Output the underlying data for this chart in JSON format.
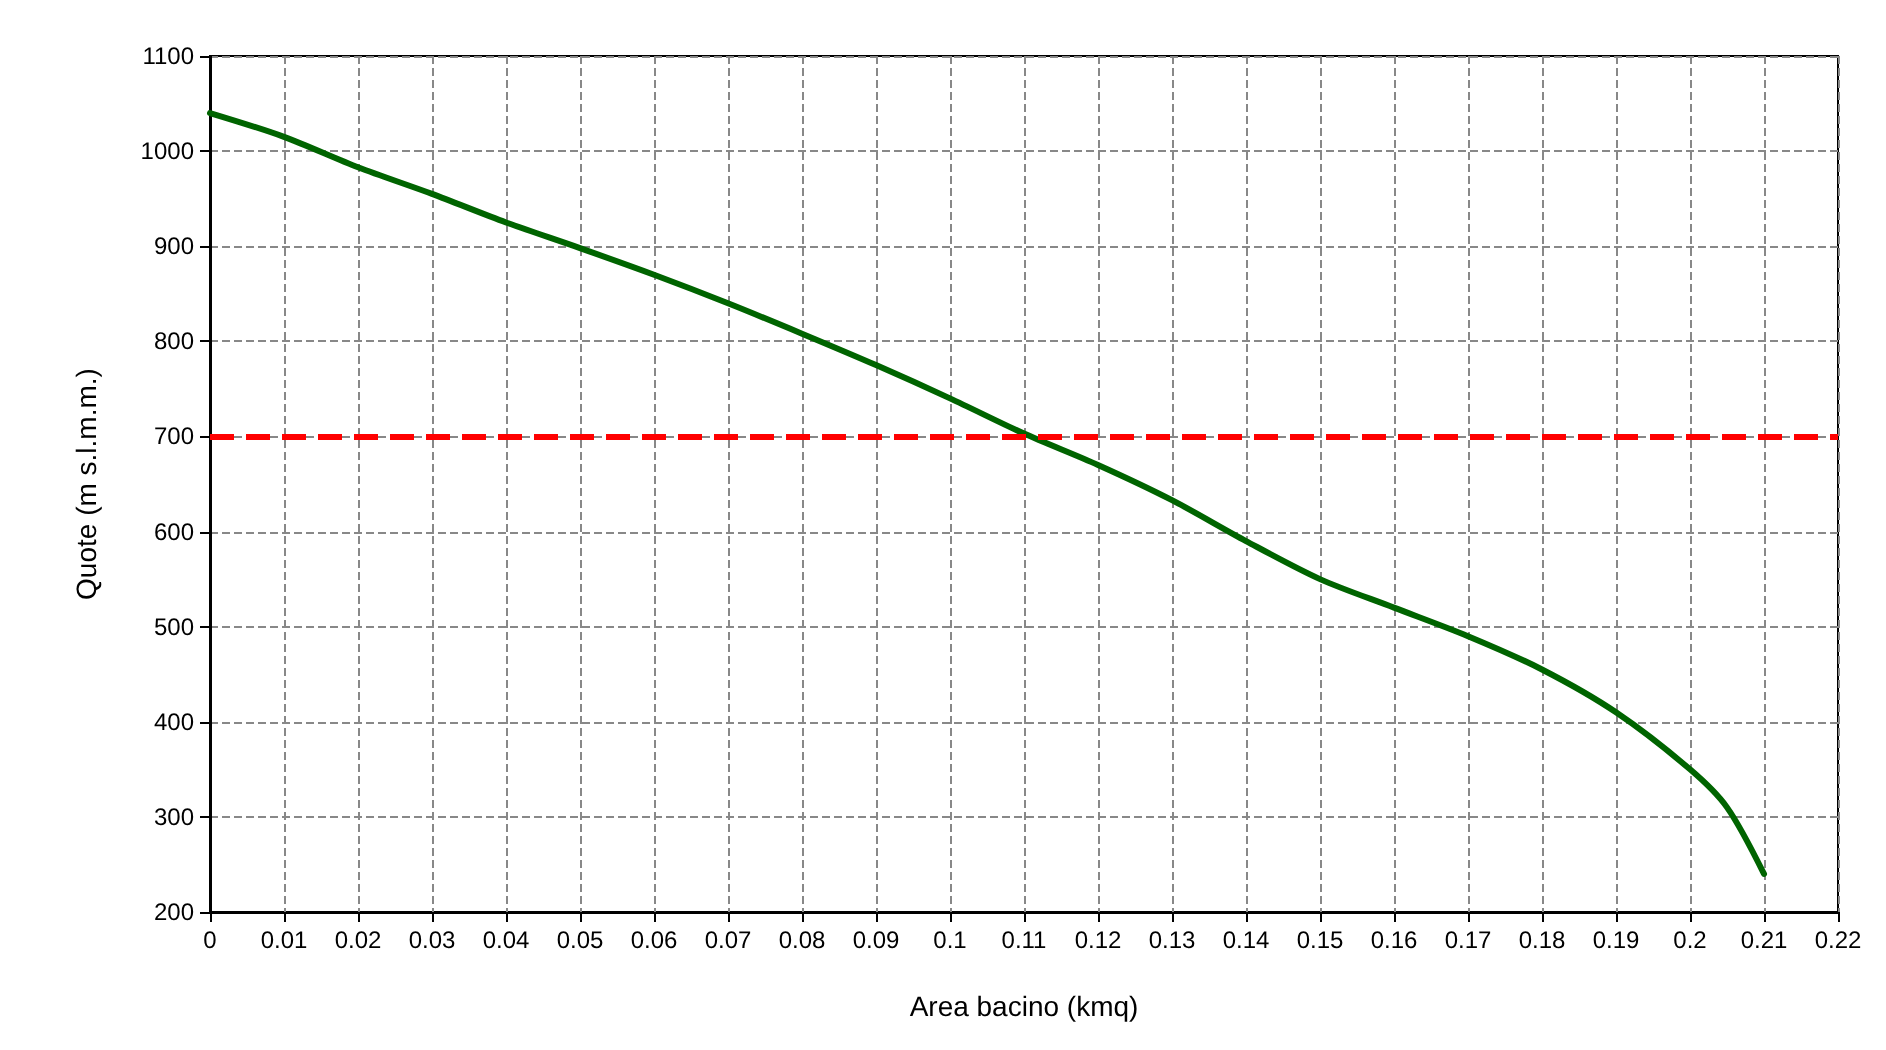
{
  "chart_data": {
    "type": "line",
    "xlabel": "Area bacino (kmq)",
    "ylabel": "Quote (m s.l.m.m.)",
    "x": [
      0,
      0.01,
      0.02,
      0.03,
      0.04,
      0.05,
      0.06,
      0.07,
      0.08,
      0.09,
      0.1,
      0.11,
      0.12,
      0.13,
      0.14,
      0.15,
      0.16,
      0.17,
      0.18,
      0.19,
      0.2,
      0.205,
      0.21
    ],
    "series": [
      {
        "color": "#006400",
        "values": [
          1040,
          1015,
          983,
          955,
          925,
          898,
          870,
          840,
          808,
          775,
          740,
          703,
          670,
          633,
          590,
          550,
          520,
          490,
          455,
          410,
          350,
          310,
          240
        ]
      }
    ],
    "xlim": [
      0,
      0.22
    ],
    "xticks": [
      0,
      0.01,
      0.02,
      0.03,
      0.04,
      0.05,
      0.06,
      0.07,
      0.08,
      0.09,
      0.1,
      0.11,
      0.12,
      0.13,
      0.14,
      0.15,
      0.16,
      0.17,
      0.18,
      0.19,
      0.2,
      0.21,
      0.22
    ],
    "ylim": [
      200,
      1100
    ],
    "yticks": [
      200,
      300,
      400,
      500,
      600,
      700,
      800,
      900,
      1000,
      1100
    ],
    "ref_lines": [
      {
        "axis": "y",
        "value": 700,
        "color": "#ff0000",
        "line_style": "dashed"
      }
    ],
    "grid": true,
    "marker": "none",
    "line_style": "solid"
  }
}
